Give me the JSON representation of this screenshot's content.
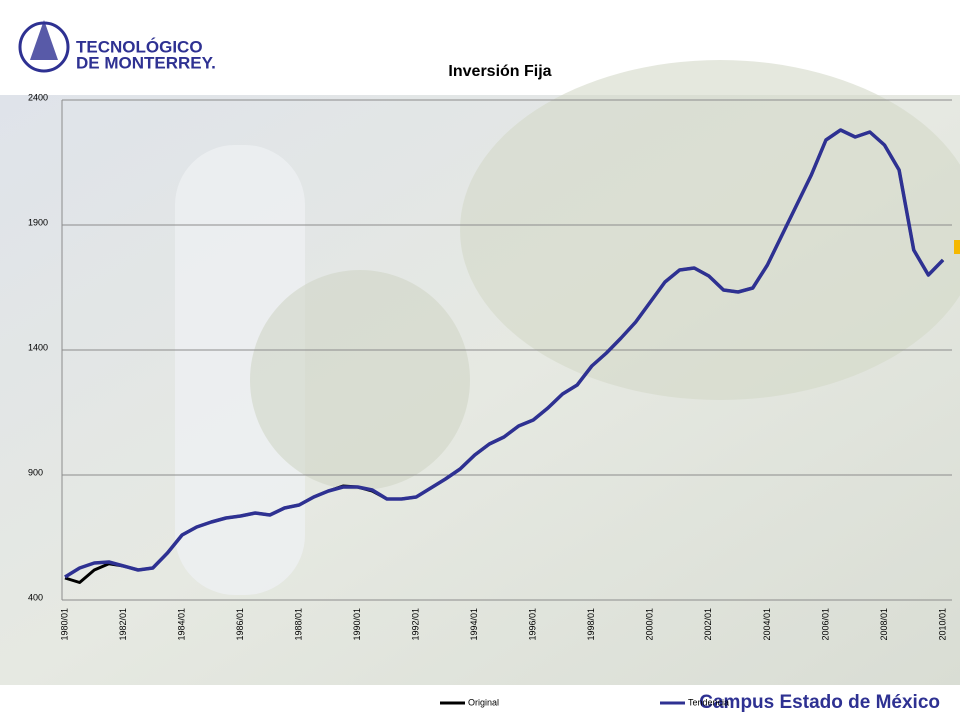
{
  "header": {
    "logo_line1": "TECNOLÓGICO",
    "logo_line2": "DE MONTERREY.",
    "campus": "Campus Estado de México"
  },
  "chart_data": {
    "type": "line",
    "title": "Inversión Fija",
    "categories": [
      "1980/01",
      null,
      null,
      null,
      "1982/01",
      null,
      null,
      null,
      "1984/01",
      null,
      null,
      null,
      "1986/01",
      null,
      null,
      null,
      "1988/01",
      null,
      null,
      null,
      "1990/01",
      null,
      null,
      null,
      "1992/01",
      null,
      null,
      null,
      "1994/01",
      null,
      null,
      null,
      "1996/01",
      null,
      null,
      null,
      "1998/01",
      null,
      null,
      null,
      "2000/01",
      null,
      null,
      null,
      "2002/01",
      null,
      null,
      null,
      "2004/01",
      null,
      null,
      null,
      "2006/01",
      null,
      null,
      null,
      "2008/01",
      null,
      null,
      null,
      "2010/01"
    ],
    "series": [
      {
        "name": "Original",
        "color": "#000000",
        "values": [
          488,
          470,
          520,
          545,
          536,
          520,
          528,
          588,
          660,
          692,
          712,
          728,
          736,
          748,
          740,
          768,
          780,
          812,
          836,
          856,
          852,
          836,
          804,
          804,
          812,
          848,
          884,
          924,
          980,
          1024,
          1052,
          1096,
          1120,
          1168,
          1224,
          1260,
          1336,
          1388,
          1448,
          1512,
          1592,
          1672,
          1720,
          1728,
          1696,
          1640,
          1632,
          1648,
          1740,
          1860,
          1980,
          2100,
          2240,
          2280,
          2252,
          2272,
          2220,
          2120,
          1800,
          1700,
          1760
        ]
      },
      {
        "name": "Tendencia",
        "color": "#2e3192",
        "values": [
          492,
          528,
          548,
          552,
          536,
          520,
          528,
          588,
          660,
          692,
          712,
          728,
          736,
          748,
          740,
          768,
          780,
          812,
          836,
          852,
          852,
          840,
          804,
          804,
          812,
          848,
          884,
          924,
          980,
          1024,
          1052,
          1096,
          1120,
          1168,
          1224,
          1260,
          1336,
          1388,
          1448,
          1512,
          1592,
          1672,
          1720,
          1728,
          1696,
          1640,
          1632,
          1648,
          1740,
          1860,
          1980,
          2100,
          2240,
          2280,
          2252,
          2272,
          2220,
          2120,
          1800,
          1700,
          1760
        ]
      }
    ],
    "ylim": [
      400,
      2400
    ],
    "yticks": [
      400,
      900,
      1400,
      1900,
      2400
    ],
    "grid": true
  }
}
